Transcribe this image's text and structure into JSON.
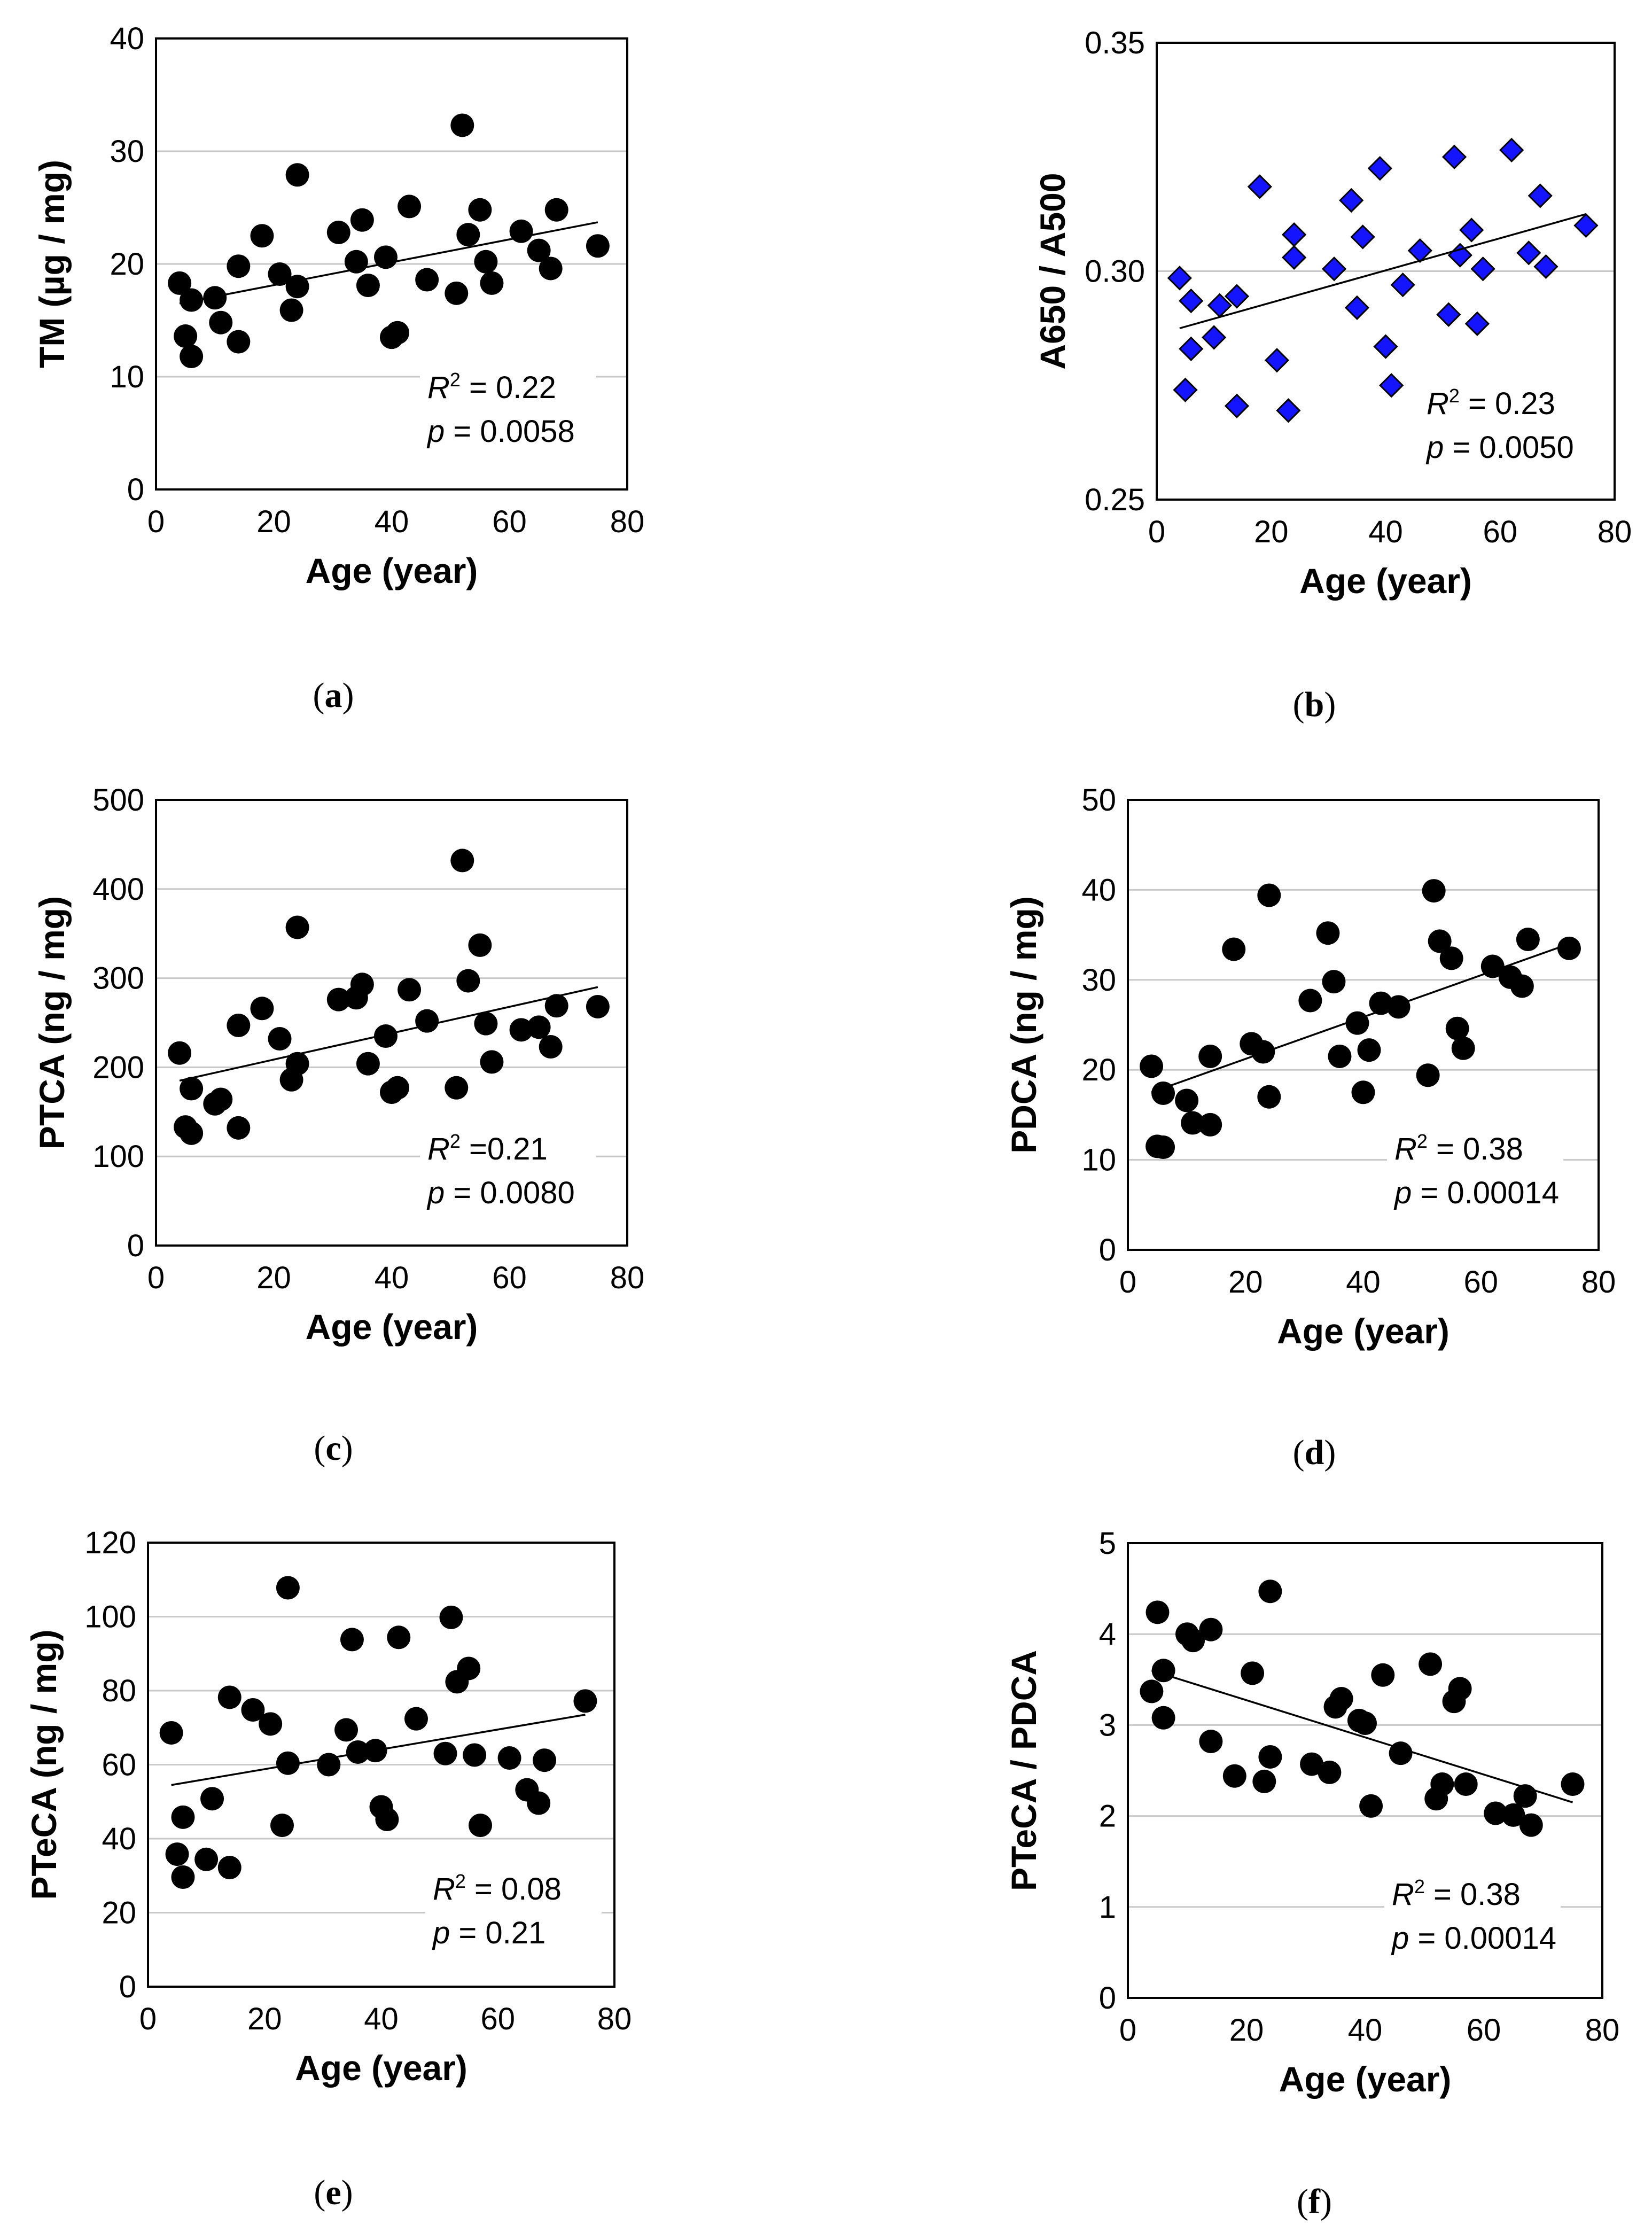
{
  "colors": {
    "marker": "#000000",
    "diamond_fill": "#1414ff",
    "diamond_stroke": "#000000",
    "grid": "#c8c8c8",
    "trend": "#000000"
  },
  "chart_data": [
    {
      "type": "scatter",
      "panel_label": "(a)",
      "xlabel": "Age (year)",
      "ylabel": "TM (µg / mg)",
      "xlim": [
        0,
        80
      ],
      "ylim": [
        0,
        40
      ],
      "xticks": [
        "0",
        "20",
        "40",
        "60",
        "80"
      ],
      "yticks": [
        "0",
        "10",
        "20",
        "30",
        "40"
      ],
      "ytick_values": [
        0,
        10,
        20,
        30,
        40
      ],
      "marker": "circle",
      "grid": true,
      "stat_r2": "= 0.22",
      "stat_p": "= 0.0058",
      "trendline": {
        "x": [
          4,
          75
        ],
        "y": [
          16.5,
          23.7
        ]
      },
      "points": [
        [
          4,
          18.3
        ],
        [
          5,
          13.6
        ],
        [
          6,
          11.8
        ],
        [
          6,
          16.8
        ],
        [
          10,
          17.0
        ],
        [
          11,
          14.8
        ],
        [
          14,
          13.1
        ],
        [
          14,
          19.8
        ],
        [
          18,
          22.5
        ],
        [
          21,
          19.1
        ],
        [
          23,
          15.9
        ],
        [
          24,
          18.0
        ],
        [
          24,
          27.9
        ],
        [
          31,
          22.8
        ],
        [
          34,
          20.2
        ],
        [
          35,
          23.9
        ],
        [
          36,
          18.1
        ],
        [
          39,
          20.6
        ],
        [
          40,
          13.5
        ],
        [
          41,
          13.9
        ],
        [
          43,
          25.1
        ],
        [
          46,
          18.6
        ],
        [
          51,
          17.4
        ],
        [
          52,
          32.3
        ],
        [
          53,
          22.6
        ],
        [
          55,
          24.8
        ],
        [
          56,
          20.2
        ],
        [
          57,
          18.3
        ],
        [
          62,
          22.9
        ],
        [
          65,
          21.2
        ],
        [
          67,
          19.6
        ],
        [
          68,
          24.8
        ],
        [
          75,
          21.6
        ]
      ]
    },
    {
      "type": "scatter",
      "panel_label": "(b)",
      "xlabel": "Age (year)",
      "ylabel": "A650 / A500",
      "xlim": [
        0,
        80
      ],
      "ylim": [
        0.25,
        0.35
      ],
      "xticks": [
        "0",
        "20",
        "40",
        "60",
        "80"
      ],
      "yticks": [
        "0.25",
        "0.30",
        "0.35"
      ],
      "ytick_values": [
        0.25,
        0.3,
        0.35
      ],
      "marker": "diamond",
      "grid": true,
      "stat_r2": "= 0.23",
      "stat_p": "= 0.0050",
      "trendline": {
        "x": [
          4,
          75
        ],
        "y": [
          0.2875,
          0.3125
        ]
      },
      "points": [
        [
          4,
          0.2985
        ],
        [
          5,
          0.274
        ],
        [
          6,
          0.2935
        ],
        [
          6,
          0.283
        ],
        [
          10,
          0.2855
        ],
        [
          11,
          0.2925
        ],
        [
          14,
          0.2705
        ],
        [
          14,
          0.2945
        ],
        [
          18,
          0.3185
        ],
        [
          21,
          0.2805
        ],
        [
          23,
          0.2695
        ],
        [
          24,
          0.303
        ],
        [
          24,
          0.308
        ],
        [
          31,
          0.3005
        ],
        [
          34,
          0.3155
        ],
        [
          35,
          0.292
        ],
        [
          36,
          0.3075
        ],
        [
          39,
          0.3225
        ],
        [
          40,
          0.2835
        ],
        [
          41,
          0.275
        ],
        [
          43,
          0.297
        ],
        [
          46,
          0.3045
        ],
        [
          51,
          0.2905
        ],
        [
          52,
          0.325
        ],
        [
          53,
          0.3035
        ],
        [
          55,
          0.309
        ],
        [
          56,
          0.2885
        ],
        [
          57,
          0.3005
        ],
        [
          62,
          0.3265
        ],
        [
          65,
          0.304
        ],
        [
          67,
          0.3165
        ],
        [
          68,
          0.301
        ],
        [
          75,
          0.31
        ]
      ]
    },
    {
      "type": "scatter",
      "panel_label": "(c)",
      "xlabel": "Age (year)",
      "ylabel": "PTCA (ng / mg)",
      "xlim": [
        0,
        80
      ],
      "ylim": [
        0,
        500
      ],
      "xticks": [
        "0",
        "20",
        "40",
        "60",
        "80"
      ],
      "yticks": [
        "0",
        "100",
        "200",
        "300",
        "400",
        "500"
      ],
      "ytick_values": [
        0,
        100,
        200,
        300,
        400,
        500
      ],
      "marker": "circle",
      "grid": true,
      "stat_r2": "=0.21",
      "stat_p": "= 0.0080",
      "trendline": {
        "x": [
          4,
          75
        ],
        "y": [
          185,
          290
        ]
      },
      "points": [
        [
          4,
          216
        ],
        [
          5,
          133
        ],
        [
          6,
          126
        ],
        [
          6,
          176
        ],
        [
          10,
          159
        ],
        [
          11,
          164
        ],
        [
          14,
          132
        ],
        [
          14,
          247
        ],
        [
          18,
          266
        ],
        [
          21,
          232
        ],
        [
          23,
          186
        ],
        [
          24,
          204
        ],
        [
          24,
          357
        ],
        [
          31,
          276
        ],
        [
          34,
          278
        ],
        [
          35,
          293
        ],
        [
          36,
          204
        ],
        [
          39,
          235
        ],
        [
          40,
          172
        ],
        [
          41,
          177
        ],
        [
          43,
          287
        ],
        [
          46,
          252
        ],
        [
          51,
          177
        ],
        [
          52,
          432
        ],
        [
          53,
          297
        ],
        [
          55,
          337
        ],
        [
          56,
          249
        ],
        [
          57,
          206
        ],
        [
          62,
          242
        ],
        [
          65,
          245
        ],
        [
          67,
          223
        ],
        [
          68,
          269
        ],
        [
          75,
          268
        ]
      ]
    },
    {
      "type": "scatter",
      "panel_label": "(d)",
      "xlabel": "Age (year)",
      "ylabel": "PDCA (ng / mg)",
      "xlim": [
        0,
        80
      ],
      "ylim": [
        0,
        50
      ],
      "xticks": [
        "0",
        "20",
        "40",
        "60",
        "80"
      ],
      "yticks": [
        "0",
        "10",
        "20",
        "30",
        "40",
        "50"
      ],
      "ytick_values": [
        0,
        10,
        20,
        30,
        40,
        50
      ],
      "marker": "circle",
      "grid": true,
      "stat_r2": "= 0.38",
      "stat_p": "= 0.00014",
      "trendline": {
        "x": [
          4,
          75
        ],
        "y": [
          17.5,
          34.0
        ]
      },
      "points": [
        [
          4,
          20.4
        ],
        [
          5,
          11.5
        ],
        [
          6,
          11.4
        ],
        [
          6,
          17.4
        ],
        [
          10,
          16.6
        ],
        [
          11,
          14.1
        ],
        [
          14,
          13.9
        ],
        [
          14,
          21.5
        ],
        [
          18,
          33.4
        ],
        [
          21,
          22.9
        ],
        [
          23,
          22.0
        ],
        [
          24,
          17.0
        ],
        [
          24,
          39.4
        ],
        [
          31,
          27.7
        ],
        [
          34,
          35.2
        ],
        [
          35,
          29.8
        ],
        [
          36,
          21.5
        ],
        [
          39,
          25.2
        ],
        [
          40,
          17.5
        ],
        [
          41,
          22.2
        ],
        [
          43,
          27.4
        ],
        [
          46,
          27.0
        ],
        [
          51,
          19.4
        ],
        [
          52,
          39.9
        ],
        [
          53,
          34.3
        ],
        [
          55,
          32.4
        ],
        [
          56,
          24.6
        ],
        [
          57,
          22.4
        ],
        [
          62,
          31.5
        ],
        [
          65,
          30.3
        ],
        [
          67,
          29.3
        ],
        [
          68,
          34.5
        ],
        [
          75,
          33.5
        ]
      ]
    },
    {
      "type": "scatter",
      "panel_label": "(e)",
      "xlabel": "Age (year)",
      "ylabel": "PTeCA (ng / mg)",
      "xlim": [
        0,
        80
      ],
      "ylim": [
        0,
        120
      ],
      "xticks": [
        "0",
        "20",
        "40",
        "60",
        "80"
      ],
      "yticks": [
        "0",
        "20",
        "40",
        "60",
        "80",
        "100",
        "120"
      ],
      "ytick_values": [
        0,
        20,
        40,
        60,
        80,
        100,
        120
      ],
      "marker": "circle",
      "grid": true,
      "stat_r2": "= 0.08",
      "stat_p": "= 0.21",
      "trendline": {
        "x": [
          4,
          75
        ],
        "y": [
          54.5,
          73.5
        ]
      },
      "points": [
        [
          4,
          68.6
        ],
        [
          5,
          35.8
        ],
        [
          6,
          29.6
        ],
        [
          6,
          45.8
        ],
        [
          10,
          34.4
        ],
        [
          11,
          50.8
        ],
        [
          14,
          32.2
        ],
        [
          14,
          78.2
        ],
        [
          18,
          74.8
        ],
        [
          21,
          71.0
        ],
        [
          23,
          43.6
        ],
        [
          24,
          60.4
        ],
        [
          24,
          107.8
        ],
        [
          31,
          60.0
        ],
        [
          34,
          69.4
        ],
        [
          35,
          93.8
        ],
        [
          36,
          63.4
        ],
        [
          39,
          63.8
        ],
        [
          40,
          48.6
        ],
        [
          41,
          45.2
        ],
        [
          43,
          94.4
        ],
        [
          46,
          72.4
        ],
        [
          51,
          63.0
        ],
        [
          52,
          99.8
        ],
        [
          53,
          82.4
        ],
        [
          55,
          86.0
        ],
        [
          56,
          62.6
        ],
        [
          57,
          43.6
        ],
        [
          62,
          61.8
        ],
        [
          65,
          53.2
        ],
        [
          67,
          49.6
        ],
        [
          68,
          61.2
        ],
        [
          75,
          77.2
        ]
      ]
    },
    {
      "type": "scatter",
      "panel_label": "(f)",
      "xlabel": "Age (year)",
      "ylabel": "PTeCA / PDCA",
      "xlim": [
        0,
        80
      ],
      "ylim": [
        0,
        5
      ],
      "xticks": [
        "0",
        "20",
        "40",
        "60",
        "80"
      ],
      "yticks": [
        "0",
        "1",
        "2",
        "3",
        "4",
        "5"
      ],
      "ytick_values": [
        0,
        1,
        2,
        3,
        4,
        5
      ],
      "marker": "circle",
      "grid": true,
      "stat_r2": "= 0.38",
      "stat_p": "= 0.00014",
      "trendline": {
        "x": [
          4,
          75
        ],
        "y": [
          3.6,
          2.15
        ]
      },
      "points": [
        [
          4,
          3.37
        ],
        [
          5,
          4.24
        ],
        [
          6,
          3.08
        ],
        [
          6,
          3.6
        ],
        [
          10,
          4.0
        ],
        [
          11,
          3.93
        ],
        [
          14,
          2.82
        ],
        [
          14,
          4.05
        ],
        [
          18,
          2.44
        ],
        [
          21,
          3.57
        ],
        [
          23,
          2.38
        ],
        [
          24,
          2.65
        ],
        [
          24,
          4.47
        ],
        [
          31,
          2.57
        ],
        [
          34,
          2.48
        ],
        [
          35,
          3.2
        ],
        [
          36,
          3.29
        ],
        [
          39,
          3.05
        ],
        [
          40,
          3.02
        ],
        [
          41,
          2.11
        ],
        [
          43,
          3.55
        ],
        [
          46,
          2.69
        ],
        [
          51,
          3.67
        ],
        [
          52,
          2.19
        ],
        [
          53,
          2.35
        ],
        [
          55,
          3.26
        ],
        [
          56,
          3.4
        ],
        [
          57,
          2.35
        ],
        [
          62,
          2.03
        ],
        [
          65,
          2.01
        ],
        [
          67,
          2.22
        ],
        [
          68,
          1.9
        ],
        [
          75,
          2.35
        ]
      ]
    }
  ]
}
